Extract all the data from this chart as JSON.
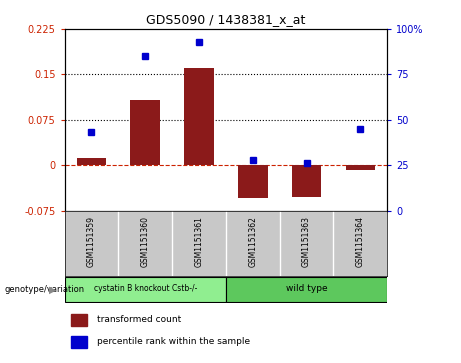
{
  "title": "GDS5090 / 1438381_x_at",
  "samples": [
    "GSM1151359",
    "GSM1151360",
    "GSM1151361",
    "GSM1151362",
    "GSM1151363",
    "GSM1151364"
  ],
  "bar_values": [
    0.012,
    0.108,
    0.16,
    -0.055,
    -0.052,
    -0.008
  ],
  "percentile_values": [
    43,
    85,
    93,
    28,
    26,
    45
  ],
  "bar_color": "#8B1A1A",
  "dot_color": "#0000CD",
  "ylim_left": [
    -0.075,
    0.225
  ],
  "ylim_right": [
    0,
    100
  ],
  "yticks_left": [
    -0.075,
    0,
    0.075,
    0.15,
    0.225
  ],
  "yticks_right": [
    0,
    25,
    50,
    75,
    100
  ],
  "ytick_labels_left": [
    "-0.075",
    "0",
    "0.075",
    "0.15",
    "0.225"
  ],
  "ytick_labels_right": [
    "0",
    "25",
    "50",
    "75",
    "100%"
  ],
  "hlines": [
    0.075,
    0.15
  ],
  "dashed_hline": 0.0,
  "left_tick_color": "#CC2200",
  "right_tick_color": "#0000CC",
  "group1_label": "cystatin B knockout Cstb-/-",
  "group2_label": "wild type",
  "group1_indices": [
    0,
    1,
    2
  ],
  "group2_indices": [
    3,
    4,
    5
  ],
  "group1_color": "#90EE90",
  "group2_color": "#5DC85D",
  "genotype_label": "genotype/variation",
  "legend_bar_label": "transformed count",
  "legend_dot_label": "percentile rank within the sample",
  "bar_width": 0.55,
  "background_color": "#FFFFFF",
  "plot_bg_color": "#FFFFFF",
  "tick_label_area_color": "#C8C8C8"
}
